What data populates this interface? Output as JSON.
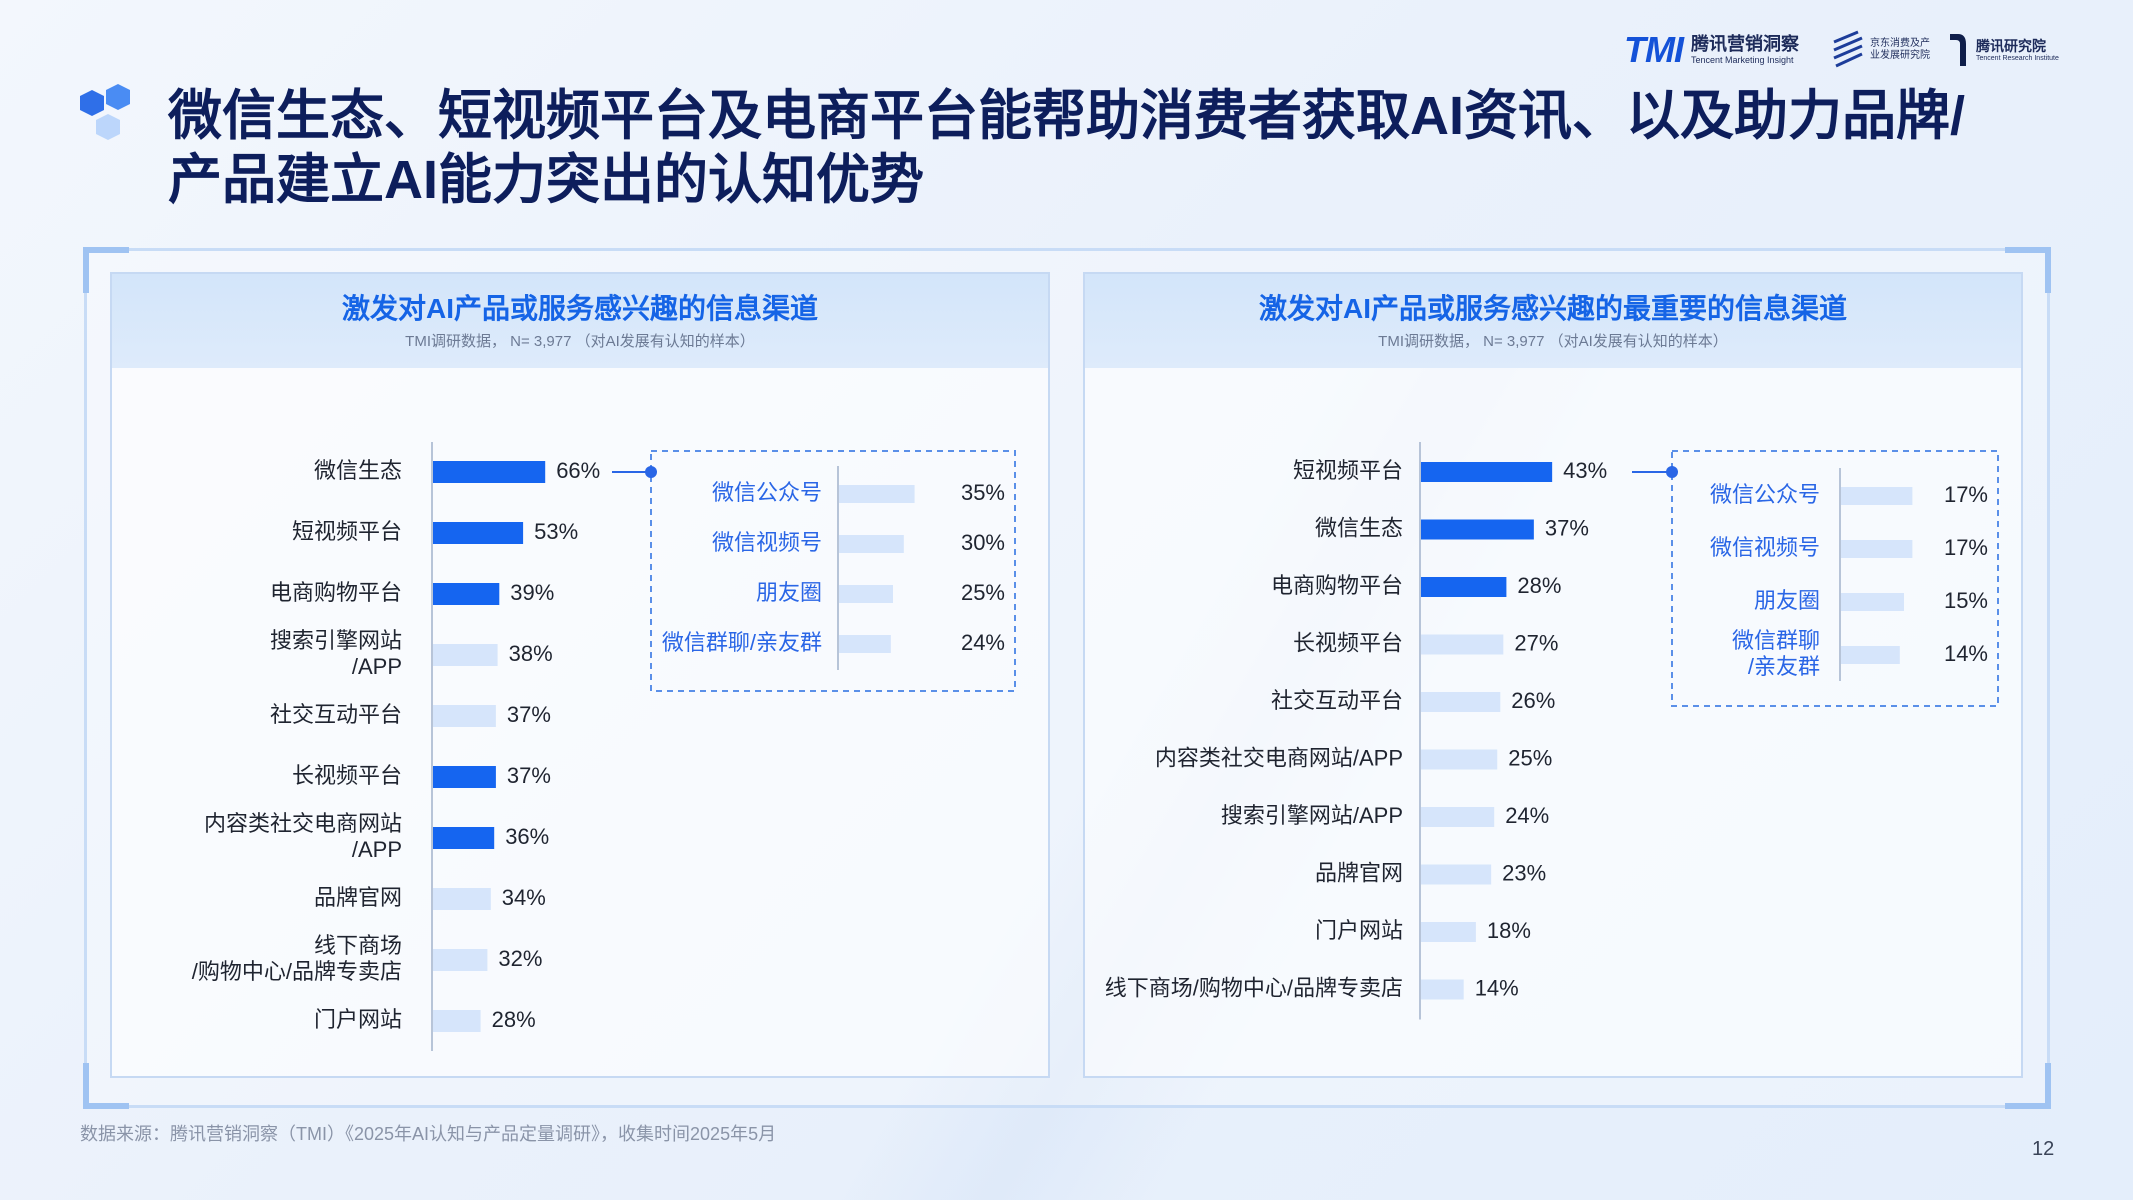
{
  "title": "微信生态、短视频平台及电商平台能帮助消费者获取AI资讯、以及助力品牌/产品建立AI能力突出的认知优势",
  "brands": {
    "tmi_mark": "TMI",
    "tmi_cn": "腾讯营销洞察",
    "tmi_en": "Tencent Marketing Insight",
    "jd_cn": "京东消费及产业发展研究院",
    "tri_cn": "腾讯研究院",
    "tri_en": "Tencent Research Institute"
  },
  "source": "数据来源：腾讯营销洞察（TMI）《2025年AI认知与产品定量调研》，收集时间2025年5月",
  "page_number": "12",
  "colors": {
    "highlight": "#1565f0",
    "muted": "#d6e5fb",
    "accent_text": "#2a66e6"
  },
  "chart_data": [
    {
      "type": "bar",
      "orientation": "horizontal",
      "title": "激发对AI产品或服务感兴趣的信息渠道",
      "subtitle": "TMI调研数据，  N= 3,977 （对AI发展有认知的样本）",
      "categories": [
        "微信生态",
        "短视频平台",
        "电商购物平台",
        "搜索引擎网站/APP",
        "社交互动平台",
        "长视频平台",
        "内容类社交电商网站/APP",
        "品牌官网",
        "线下商场/购物中心/品牌专卖店",
        "门户网站"
      ],
      "values": [
        66,
        53,
        39,
        38,
        37,
        37,
        36,
        34,
        32,
        28
      ],
      "value_labels": [
        "66%",
        "53%",
        "39%",
        "38%",
        "37%",
        "37%",
        "36%",
        "34%",
        "32%",
        "28%"
      ],
      "highlighted": [
        true,
        true,
        true,
        false,
        false,
        true,
        true,
        false,
        false,
        false
      ],
      "breakdown": {
        "of": "微信生态",
        "categories": [
          "微信公众号",
          "微信视频号",
          "朋友圈",
          "微信群聊/亲友群"
        ],
        "values": [
          35,
          30,
          25,
          24
        ],
        "value_labels": [
          "35%",
          "30%",
          "25%",
          "24%"
        ]
      }
    },
    {
      "type": "bar",
      "orientation": "horizontal",
      "title": "激发对AI产品或服务感兴趣的最重要的信息渠道",
      "subtitle": "TMI调研数据，  N= 3,977 （对AI发展有认知的样本）",
      "categories": [
        "短视频平台",
        "微信生态",
        "电商购物平台",
        "长视频平台",
        "社交互动平台",
        "内容类社交电商网站/APP",
        "搜索引擎网站/APP",
        "品牌官网",
        "门户网站",
        "线下商场/购物中心/品牌专卖店"
      ],
      "values": [
        43,
        37,
        28,
        27,
        26,
        25,
        24,
        23,
        18,
        14
      ],
      "value_labels": [
        "43%",
        "37%",
        "28%",
        "27%",
        "26%",
        "25%",
        "24%",
        "23%",
        "18%",
        "14%"
      ],
      "highlighted": [
        true,
        true,
        true,
        false,
        false,
        false,
        false,
        false,
        false,
        false
      ],
      "breakdown": {
        "of": "微信生态",
        "categories": [
          "微信公众号",
          "微信视频号",
          "朋友圈",
          "微信群聊/亲友群"
        ],
        "values": [
          17,
          17,
          15,
          14
        ],
        "value_labels": [
          "17%",
          "17%",
          "15%",
          "14%"
        ]
      }
    }
  ]
}
